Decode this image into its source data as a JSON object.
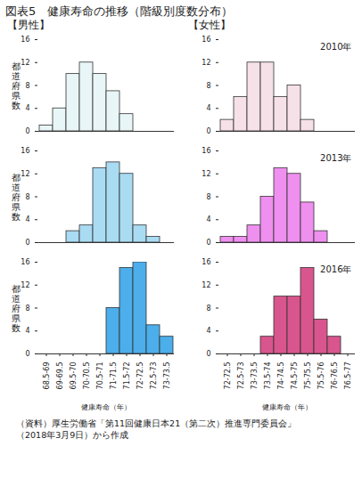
{
  "title": "図表5　健康寿命の推移（階級別度数分布）",
  "source": [
    "（資料）厚生労働省「第11回健康日本21（第二次）推進専門委員会」",
    "（2018年3月9日）から作成"
  ],
  "chart_data": [
    {
      "type": "bar",
      "title": "【男性】",
      "y_label": "都道府県数",
      "tick_labels": "y",
      "categories": [
        "68.5-69",
        "69-69.5",
        "69.5-70",
        "70-70.5",
        "70.5-71",
        "71-71.5",
        "71.5-72",
        "72-72.5",
        "72.5-73",
        "73-73.5"
      ],
      "values": [
        1,
        4,
        10,
        12,
        10,
        7,
        3,
        0,
        0,
        0
      ],
      "color": "#e8f6f7",
      "ylim": [
        0,
        16
      ],
      "yticks": [
        0,
        4,
        8,
        12,
        16
      ]
    },
    {
      "type": "bar",
      "title": "【女性】",
      "annotations": [
        "2010年"
      ],
      "tick_labels": "y",
      "categories": [
        "72-72.5",
        "72.5-73",
        "73-73.5",
        "73.5-74",
        "74-74.5",
        "74.5-75",
        "75-75.5",
        "75.5-76",
        "76-76.5",
        "76.5-77"
      ],
      "values": [
        2,
        6,
        12,
        12,
        6,
        8,
        2,
        0,
        0,
        0
      ],
      "color": "#f6e1e9",
      "ylim": [
        0,
        16
      ],
      "yticks": [
        0,
        4,
        8,
        12,
        16
      ]
    },
    {
      "type": "bar",
      "y_label": "都道府県数",
      "tick_labels": "y",
      "categories": [
        "68.5-69",
        "69-69.5",
        "69.5-70",
        "70-70.5",
        "70.5-71",
        "71-71.5",
        "71.5-72",
        "72-72.5",
        "72.5-73",
        "73-73.5"
      ],
      "values": [
        0,
        0,
        2,
        3,
        13,
        14,
        12,
        3,
        1,
        0
      ],
      "color": "#a9dbf3",
      "ylim": [
        0,
        16
      ],
      "yticks": [
        0,
        4,
        8,
        12,
        16
      ]
    },
    {
      "type": "bar",
      "annotations": [
        "2013年"
      ],
      "tick_labels": "y",
      "categories": [
        "72-72.5",
        "72.5-73",
        "73-73.5",
        "73.5-74",
        "74-74.5",
        "74.5-75",
        "75-75.5",
        "75.5-76",
        "76-76.5",
        "76.5-77"
      ],
      "values": [
        1,
        1,
        3,
        8,
        13,
        12,
        7,
        2,
        0,
        0
      ],
      "color": "#ef8fef",
      "ylim": [
        0,
        16
      ],
      "yticks": [
        0,
        4,
        8,
        12,
        16
      ]
    },
    {
      "type": "bar",
      "y_label": "都道府県数",
      "x_label": "健康寿命（年）",
      "categories": [
        "68.5-69",
        "69-69.5",
        "69.5-70",
        "70-70.5",
        "70.5-71",
        "71-71.5",
        "71.5-72",
        "72-72.5",
        "72.5-73",
        "73-73.5"
      ],
      "values": [
        0,
        0,
        0,
        0,
        0,
        8,
        15,
        16,
        5,
        3
      ],
      "color": "#4caeea",
      "ylim": [
        0,
        16
      ],
      "yticks": [
        0,
        4,
        8,
        12,
        16
      ]
    },
    {
      "type": "bar",
      "annotations": [
        "2016年"
      ],
      "x_label": "健康寿命（年）",
      "categories": [
        "72-72.5",
        "72.5-73",
        "73-73.5",
        "73.5-74",
        "74-74.5",
        "74.5-75",
        "75-75.5",
        "75.5-76",
        "76-76.5",
        "76.5-77"
      ],
      "values": [
        0,
        0,
        0,
        3,
        10,
        10,
        15,
        6,
        3,
        0
      ],
      "color": "#d9558d",
      "ylim": [
        0,
        16
      ],
      "yticks": [
        0,
        4,
        8,
        12,
        16
      ]
    }
  ]
}
